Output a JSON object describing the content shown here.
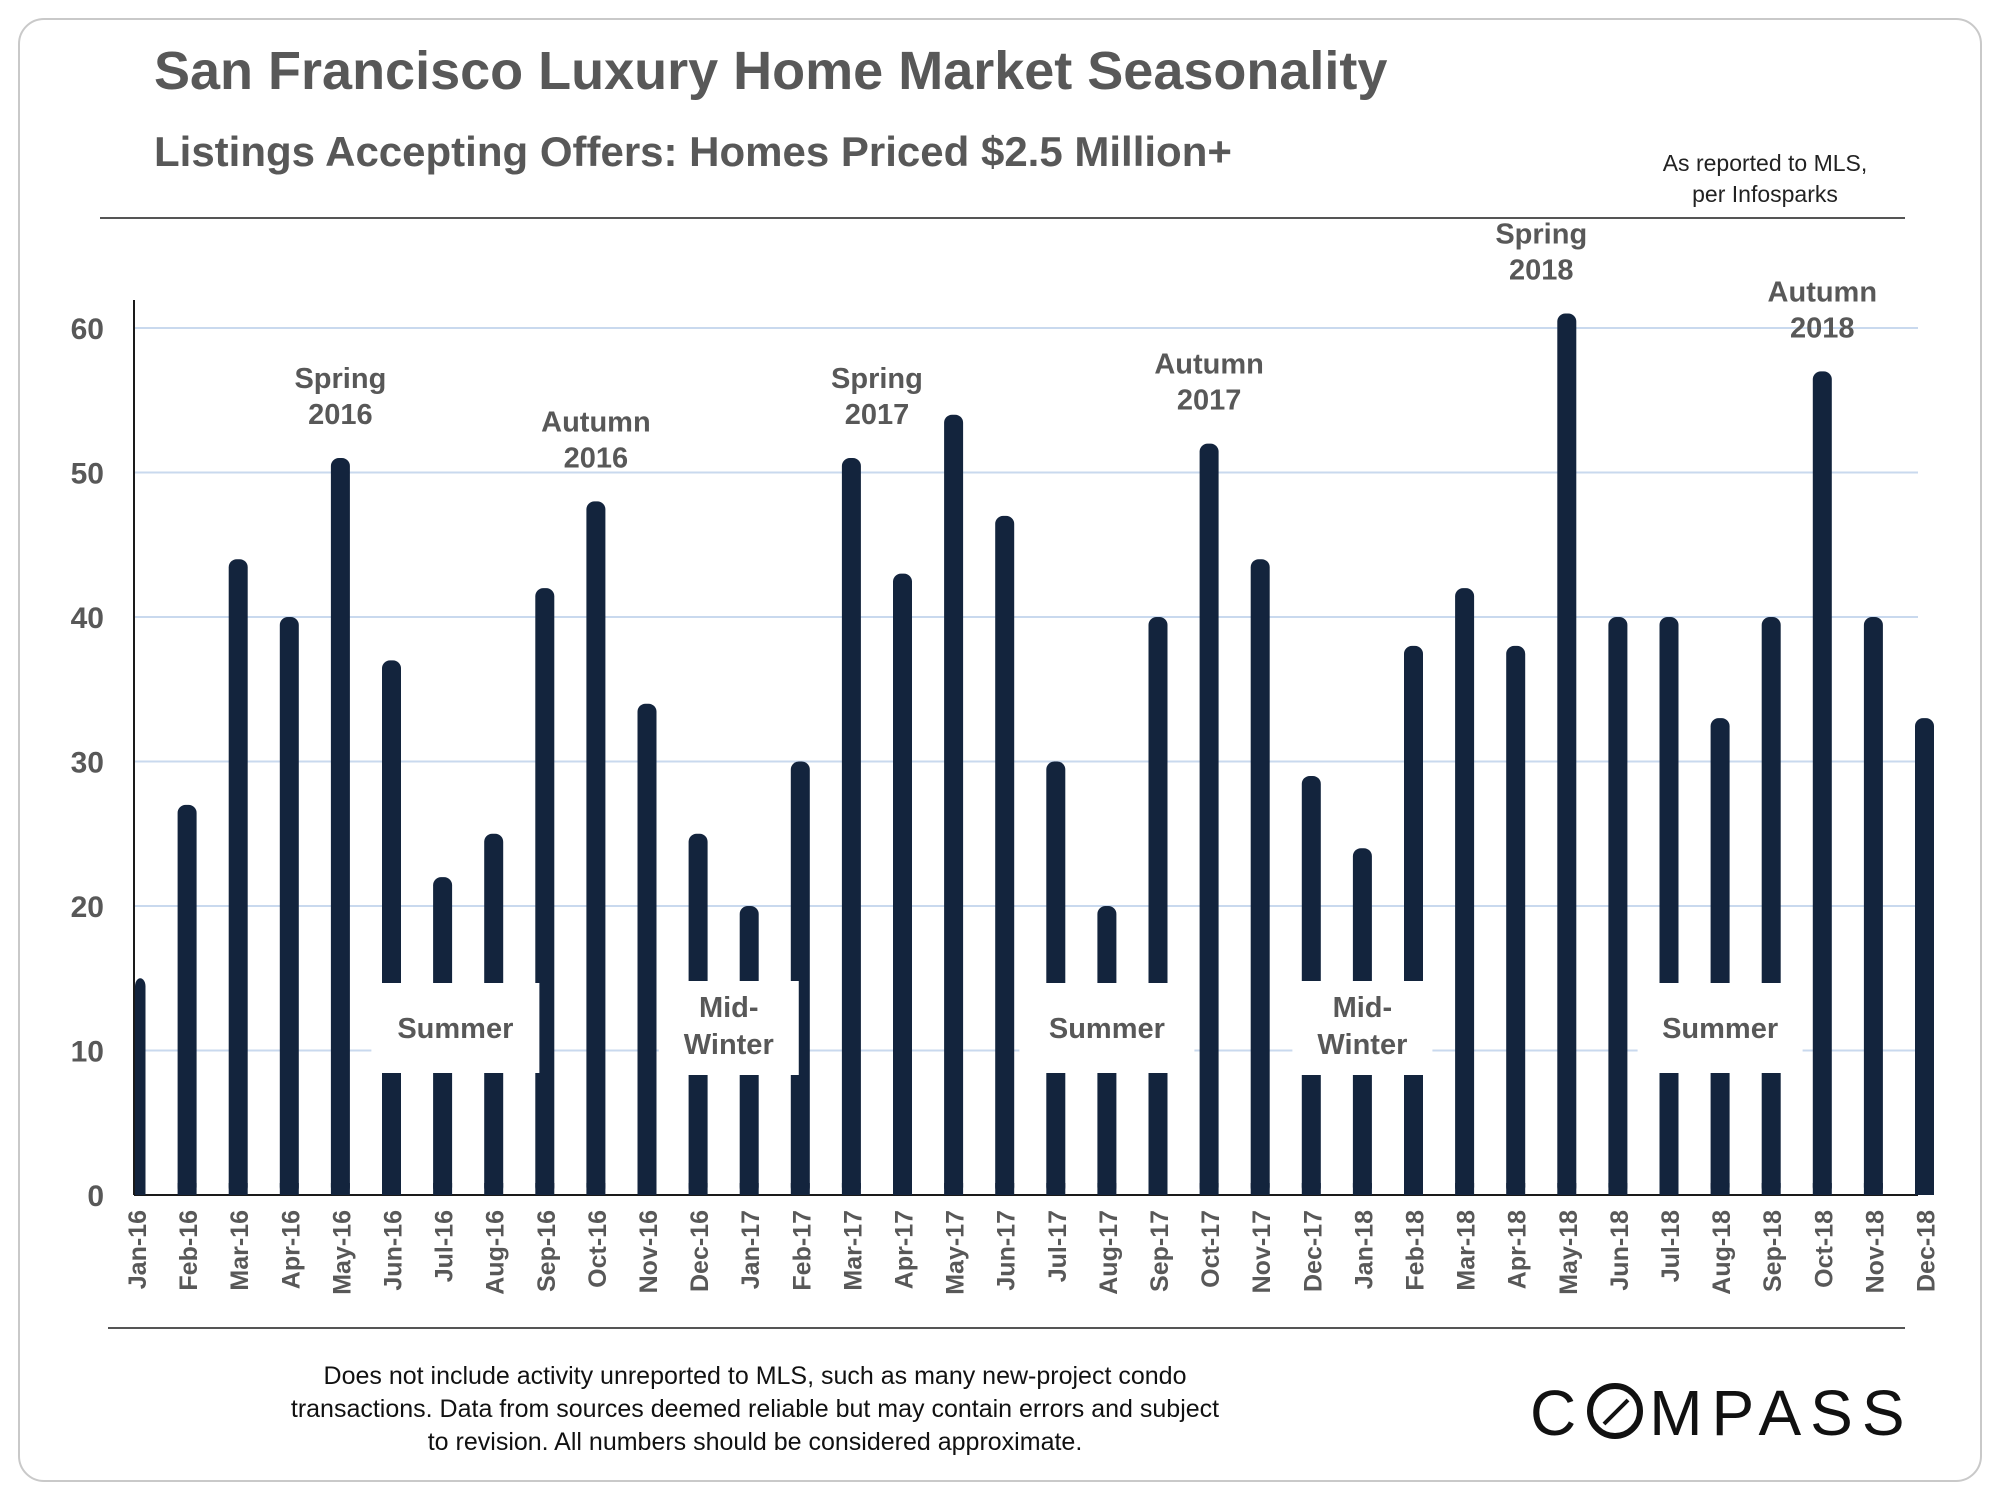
{
  "header": {
    "title": "San Francisco Luxury Home Market Seasonality",
    "subtitle": "Listings Accepting Offers: Homes Priced $2.5 Million+",
    "source_line1": "As reported to MLS,",
    "source_line2": "per Infosparks"
  },
  "footer": {
    "note_line1": "Does not include activity unreported to MLS, such as many new-project condo",
    "note_line2": "transactions. Data from sources deemed reliable but may contain errors and subject",
    "note_line3": "to revision.  All numbers should be considered approximate.",
    "logo_pre": "C",
    "logo_post": "MPASS"
  },
  "colors": {
    "bar": "#13243d",
    "grid": "#c9d9ee",
    "axis": "#1a1a1a",
    "text": "#585858"
  },
  "chart_data": {
    "type": "bar",
    "title": "Listings Accepting Offers: Homes Priced $2.5 Million+",
    "xlabel": "",
    "ylabel": "",
    "ylim": [
      0,
      62
    ],
    "yticks": [
      0,
      10,
      20,
      30,
      40,
      50,
      60
    ],
    "grid": true,
    "categories": [
      "Jan-16",
      "Feb-16",
      "Mar-16",
      "Apr-16",
      "May-16",
      "Jun-16",
      "Jul-16",
      "Aug-16",
      "Sep-16",
      "Oct-16",
      "Nov-16",
      "Dec-16",
      "Jan-17",
      "Feb-17",
      "Mar-17",
      "Apr-17",
      "May-17",
      "Jun-17",
      "Jul-17",
      "Aug-17",
      "Sep-17",
      "Oct-17",
      "Nov-17",
      "Dec-17",
      "Jan-18",
      "Feb-18",
      "Mar-18",
      "Apr-18",
      "May-18",
      "Jun-18",
      "Jul-18",
      "Aug-18",
      "Sep-18",
      "Oct-18",
      "Nov-18",
      "Dec-18"
    ],
    "values": [
      15,
      27,
      44,
      40,
      51,
      37,
      22,
      25,
      42,
      48,
      34,
      25,
      20,
      30,
      51,
      43,
      54,
      47,
      30,
      20,
      40,
      52,
      44,
      29,
      24,
      38,
      42,
      38,
      61,
      40,
      40,
      33,
      40,
      57,
      40,
      33
    ],
    "peak_annotations": [
      {
        "line1": "Spring",
        "line2": "2016",
        "index": 4
      },
      {
        "line1": "Autumn",
        "line2": "2016",
        "index": 9
      },
      {
        "line1": "Spring",
        "line2": "2017",
        "index": 14.5
      },
      {
        "line1": "Autumn",
        "line2": "2017",
        "index": 21
      },
      {
        "line1": "Spring",
        "line2": "2018",
        "index": 27.5
      },
      {
        "line1": "Autumn",
        "line2": "2018",
        "index": 33
      },
      {
        "line1": "",
        "line2": "",
        "index": 0
      }
    ],
    "season_annotations": [
      {
        "line1": "Summer",
        "line2": "",
        "index": 6.25
      },
      {
        "line1": "Mid-",
        "line2": "Winter",
        "index": 11.6
      },
      {
        "line1": "Summer",
        "line2": "",
        "index": 19
      },
      {
        "line1": "Mid-",
        "line2": "Winter",
        "index": 24
      },
      {
        "line1": "Summer",
        "line2": "",
        "index": 31
      }
    ]
  }
}
